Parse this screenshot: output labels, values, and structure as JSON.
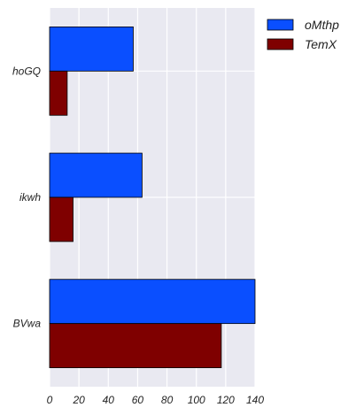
{
  "chart_data": {
    "type": "bar",
    "orientation": "horizontal",
    "categories": [
      "hoGQ",
      "ikwh",
      "BVwa"
    ],
    "series": [
      {
        "name": "oMthp",
        "values": [
          57,
          63,
          140
        ],
        "color": "#0a4fff"
      },
      {
        "name": "TemX",
        "values": [
          12,
          16,
          117
        ],
        "color": "#7f0000"
      }
    ],
    "xlim": [
      0,
      140
    ],
    "xticks": [
      0,
      20,
      40,
      60,
      80,
      100,
      120,
      140
    ],
    "grid": true,
    "legend_position": "outside-top-right",
    "background": "#e9e9f1",
    "grid_color": "#ffffff"
  }
}
